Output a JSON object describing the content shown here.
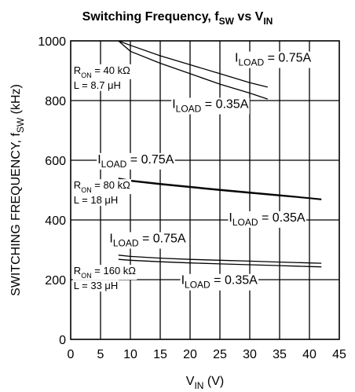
{
  "chart_data": {
    "type": "line",
    "title": {
      "main": "Switching Frequency, f",
      "main_sub": "SW",
      "mid": " vs V",
      "mid_sub": "IN"
    },
    "xlabel": {
      "main": "V",
      "sub": "IN",
      "tail": " (V)"
    },
    "ylabel": {
      "main": "SWITCHING FREQUENCY, f",
      "sub": "SW",
      "tail": " (kHz)"
    },
    "xlim": [
      0,
      45
    ],
    "ylim": [
      0,
      1000
    ],
    "xticks": [
      0,
      5,
      10,
      15,
      20,
      25,
      30,
      35,
      40,
      45
    ],
    "yticks": [
      0,
      200,
      400,
      600,
      800,
      1000
    ],
    "grid": true,
    "series": [
      {
        "group": 0,
        "name": "ILOAD = 0.75A",
        "x": [
          8,
          10,
          15,
          20,
          25,
          30,
          33
        ],
        "y": [
          1000,
          985,
          950,
          920,
          890,
          860,
          845
        ]
      },
      {
        "group": 0,
        "name": "ILOAD = 0.35A",
        "x": [
          8,
          10,
          15,
          20,
          25,
          30,
          33
        ],
        "y": [
          1000,
          965,
          925,
          890,
          855,
          825,
          805
        ]
      },
      {
        "group": 1,
        "name": "ILOAD = 0.75A",
        "x": [
          8,
          10,
          15,
          20,
          25,
          30,
          35,
          40,
          42
        ],
        "y": [
          540,
          533,
          522,
          512,
          502,
          493,
          484,
          474,
          470
        ]
      },
      {
        "group": 1,
        "name": "ILOAD = 0.35A",
        "x": [
          8,
          10,
          15,
          20,
          25,
          30,
          35,
          40,
          42
        ],
        "y": [
          536,
          530,
          519,
          509,
          499,
          490,
          481,
          472,
          468
        ]
      },
      {
        "group": 2,
        "name": "ILOAD = 0.75A",
        "x": [
          8,
          10,
          15,
          20,
          25,
          30,
          35,
          40,
          42
        ],
        "y": [
          282,
          278,
          272,
          268,
          265,
          262,
          259,
          256,
          255
        ]
      },
      {
        "group": 2,
        "name": "ILOAD = 0.35A",
        "x": [
          8,
          10,
          15,
          20,
          25,
          30,
          35,
          40,
          42
        ],
        "y": [
          268,
          265,
          260,
          256,
          253,
          250,
          247,
          244,
          243
        ]
      }
    ],
    "annotations": [
      {
        "id": "iload-075-top",
        "kind": "iload",
        "main": "I",
        "sub": "LOAD",
        "tail": " = 0.75A",
        "x": 27.5,
        "y": 930
      },
      {
        "id": "iload-035-top",
        "kind": "iload",
        "main": "I",
        "sub": "LOAD",
        "tail": " = 0.35A",
        "x": 17.0,
        "y": 775
      },
      {
        "id": "cond-top-ron",
        "kind": "ron",
        "main": "R",
        "sub": "ON",
        "tail": " = 40 kΩ",
        "x": 0.5,
        "y": 890
      },
      {
        "id": "cond-top-l",
        "kind": "l",
        "text": "L = 8.7 μH",
        "x": 0.5,
        "y": 840
      },
      {
        "id": "iload-075-mid",
        "kind": "iload",
        "main": "I",
        "sub": "LOAD",
        "tail": " = 0.75A",
        "x": 4.5,
        "y": 590
      },
      {
        "id": "iload-035-mid",
        "kind": "iload",
        "main": "I",
        "sub": "LOAD",
        "tail": " = 0.35A",
        "x": 26.5,
        "y": 395
      },
      {
        "id": "cond-mid-ron",
        "kind": "ron",
        "main": "R",
        "sub": "ON",
        "tail": " = 80 kΩ",
        "x": 0.5,
        "y": 505
      },
      {
        "id": "cond-mid-l",
        "kind": "l",
        "text": "L = 18 μH",
        "x": 0.5,
        "y": 455
      },
      {
        "id": "iload-075-low",
        "kind": "iload",
        "main": "I",
        "sub": "LOAD",
        "tail": " = 0.75A",
        "x": 6.5,
        "y": 325
      },
      {
        "id": "iload-035-low",
        "kind": "iload",
        "main": "I",
        "sub": "LOAD",
        "tail": " = 0.35A",
        "x": 18.5,
        "y": 185
      },
      {
        "id": "cond-low-ron",
        "kind": "ron",
        "main": "R",
        "sub": "ON",
        "tail": " = 160 kΩ",
        "x": 0.5,
        "y": 218
      },
      {
        "id": "cond-low-l",
        "kind": "l",
        "text": "L = 33 μH",
        "x": 0.5,
        "y": 168
      }
    ]
  }
}
